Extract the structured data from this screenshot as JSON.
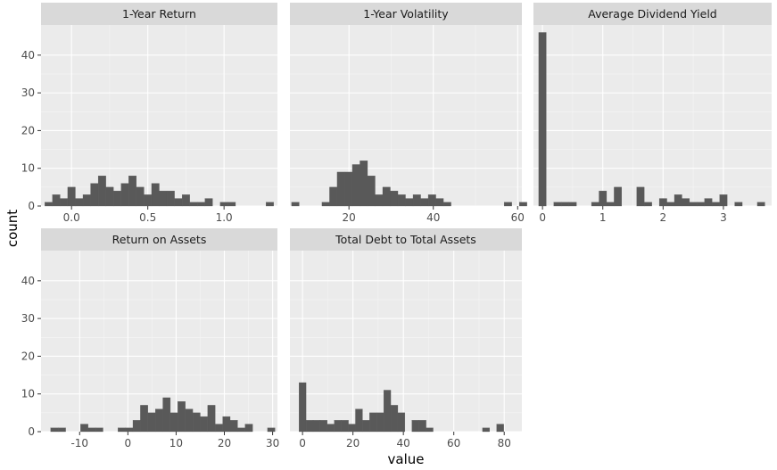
{
  "chart_data": {
    "type": "bar",
    "xlabel": "value",
    "ylabel": "count",
    "ylim": [
      0,
      48
    ],
    "yticks": [
      0,
      10,
      20,
      30,
      40
    ],
    "grid": true,
    "colors": {
      "bar": "#595959",
      "panel": "#ebebeb",
      "strip": "#d9d9d9",
      "grid": "#ffffff"
    },
    "panels": [
      {
        "title": "1-Year Return",
        "xlim": [
          -0.2,
          1.35
        ],
        "xticks": [
          0.0,
          0.5,
          1.0
        ],
        "xtick_labels": [
          "0.0",
          "0.5",
          "1.0"
        ],
        "bin_width": 0.05,
        "bin_start": -0.175,
        "counts": [
          1,
          3,
          2,
          5,
          2,
          3,
          6,
          8,
          5,
          4,
          6,
          8,
          5,
          3,
          6,
          4,
          4,
          2,
          3,
          1,
          1,
          2,
          0,
          1,
          1,
          0,
          0,
          0,
          0,
          1
        ]
      },
      {
        "title": "1-Year Volatility",
        "xlim": [
          6,
          61
        ],
        "xticks": [
          20,
          40,
          60
        ],
        "xtick_labels": [
          "20",
          "40",
          "60"
        ],
        "bin_width": 1.8,
        "bin_start": 6.4,
        "counts": [
          1,
          0,
          0,
          0,
          1,
          5,
          9,
          9,
          11,
          12,
          8,
          3,
          5,
          4,
          3,
          2,
          3,
          2,
          3,
          2,
          1,
          0,
          0,
          0,
          0,
          0,
          0,
          0,
          1,
          0,
          1
        ]
      },
      {
        "title": "Average Dividend Yield",
        "xlim": [
          -0.15,
          3.8
        ],
        "xticks": [
          0,
          1,
          2,
          3
        ],
        "xtick_labels": [
          "0",
          "1",
          "2",
          "3"
        ],
        "bin_width": 0.125,
        "bin_start": -0.0625,
        "counts": [
          46,
          0,
          1,
          1,
          1,
          0,
          0,
          1,
          4,
          1,
          5,
          0,
          0,
          5,
          1,
          0,
          2,
          1,
          3,
          2,
          1,
          1,
          2,
          1,
          3,
          0,
          1,
          0,
          0,
          1
        ]
      },
      {
        "title": "Return on Assets",
        "xlim": [
          -18,
          31
        ],
        "xticks": [
          -10,
          0,
          10,
          20,
          30
        ],
        "xtick_labels": [
          "-10",
          "0",
          "10",
          "20",
          "30"
        ],
        "bin_width": 1.55,
        "bin_start": -16.0,
        "counts": [
          1,
          1,
          0,
          0,
          2,
          1,
          1,
          0,
          0,
          1,
          1,
          3,
          7,
          5,
          6,
          9,
          5,
          8,
          6,
          5,
          4,
          7,
          2,
          4,
          3,
          1,
          2,
          0,
          0,
          1
        ]
      },
      {
        "title": "Total Debt to Total Assets",
        "xlim": [
          -5,
          87
        ],
        "xticks": [
          0,
          20,
          40,
          60,
          80
        ],
        "xtick_labels": [
          "0",
          "20",
          "40",
          "60",
          "80"
        ],
        "bin_width": 2.8,
        "bin_start": -1.4,
        "counts": [
          13,
          3,
          3,
          3,
          2,
          3,
          3,
          2,
          6,
          3,
          5,
          5,
          11,
          7,
          5,
          0,
          3,
          3,
          1,
          0,
          0,
          0,
          0,
          0,
          0,
          0,
          1,
          0,
          2
        ]
      }
    ]
  }
}
